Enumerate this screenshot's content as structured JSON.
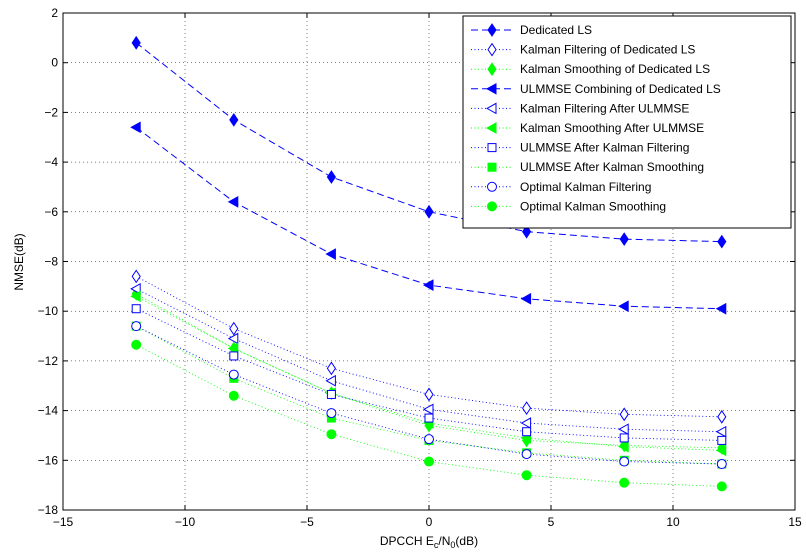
{
  "chart_data": {
    "type": "line",
    "xlabel": {
      "prefix": "DPCCH E",
      "sub1": "c",
      "mid": "/N",
      "sub2": "0",
      "suffix": "(dB)"
    },
    "ylabel": "NMSE(dB)",
    "xlim": [
      -15,
      15
    ],
    "ylim": [
      -18,
      2
    ],
    "xticks": [
      -15,
      -10,
      -5,
      0,
      5,
      10,
      15
    ],
    "yticks": [
      2,
      0,
      -2,
      -4,
      -6,
      -8,
      -10,
      -12,
      -14,
      -16,
      -18
    ],
    "xtick_labels": [
      "−15",
      "−10",
      "−5",
      "0",
      "5",
      "10",
      "15"
    ],
    "ytick_labels": [
      "2",
      "0",
      "−2",
      "−4",
      "−6",
      "−8",
      "−10",
      "−12",
      "−14",
      "−16",
      "−18"
    ],
    "grid": true,
    "legend_position": "top-right",
    "x": [
      -12,
      -8,
      -4,
      0,
      4,
      8,
      12
    ],
    "series": [
      {
        "name": "Dedicated LS",
        "values": [
          0.8,
          -2.3,
          -4.6,
          -6.0,
          -6.8,
          -7.1,
          -7.2
        ],
        "color": "#0000ff",
        "marker": "diamond",
        "filled": true,
        "line": "dashed"
      },
      {
        "name": "Kalman Filtering of Dedicated LS",
        "values": [
          -8.6,
          -10.7,
          -12.3,
          -13.35,
          -13.9,
          -14.15,
          -14.25
        ],
        "color": "#0000ff",
        "marker": "diamond",
        "filled": false,
        "line": "dotted"
      },
      {
        "name": "Kalman Smoothing of Dedicated LS",
        "values": [
          -9.3,
          -11.5,
          -13.3,
          -14.6,
          -15.2,
          -15.4,
          -15.5
        ],
        "color": "#00ff00",
        "marker": "diamond",
        "filled": true,
        "line": "dotted"
      },
      {
        "name": "ULMMSE Combining of Dedicated LS",
        "values": [
          -2.6,
          -5.6,
          -7.7,
          -8.95,
          -9.5,
          -9.8,
          -9.9
        ],
        "color": "#0000ff",
        "marker": "triangle-left",
        "filled": true,
        "line": "dashed"
      },
      {
        "name": "Kalman Filtering After ULMMSE",
        "values": [
          -9.1,
          -11.1,
          -12.8,
          -13.95,
          -14.5,
          -14.75,
          -14.85
        ],
        "color": "#0000ff",
        "marker": "triangle-left",
        "filled": false,
        "line": "dotted"
      },
      {
        "name": "Kalman Smoothing After ULMMSE",
        "values": [
          -9.4,
          -11.5,
          -13.3,
          -14.5,
          -15.1,
          -15.45,
          -15.6
        ],
        "color": "#00ff00",
        "marker": "triangle-left",
        "filled": true,
        "line": "dotted"
      },
      {
        "name": "ULMMSE After Kalman Filtering",
        "values": [
          -9.9,
          -11.8,
          -13.35,
          -14.3,
          -14.85,
          -15.1,
          -15.2
        ],
        "color": "#0000ff",
        "marker": "square",
        "filled": false,
        "line": "dotted"
      },
      {
        "name": "ULMMSE After Kalman Smoothing",
        "values": [
          -10.6,
          -12.7,
          -14.3,
          -15.2,
          -15.7,
          -16.0,
          -16.15
        ],
        "color": "#00ff00",
        "marker": "square",
        "filled": true,
        "line": "dotted"
      },
      {
        "name": "Optimal Kalman Filtering",
        "values": [
          -10.6,
          -12.55,
          -14.1,
          -15.15,
          -15.75,
          -16.05,
          -16.15
        ],
        "color": "#0000ff",
        "marker": "circle",
        "filled": false,
        "line": "dotted"
      },
      {
        "name": "Optimal Kalman Smoothing",
        "values": [
          -11.35,
          -13.4,
          -14.95,
          -16.05,
          -16.6,
          -16.9,
          -17.05
        ],
        "color": "#00ff00",
        "marker": "circle",
        "filled": true,
        "line": "dotted"
      }
    ]
  }
}
